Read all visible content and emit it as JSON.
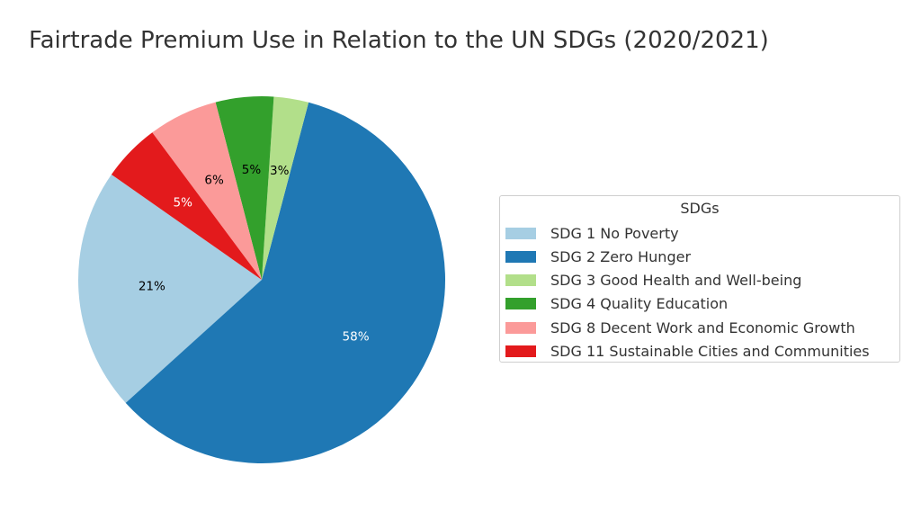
{
  "chart_data": {
    "type": "pie",
    "title": "Fairtrade Premium Use in Relation to the UN SDGs (2020/2021)",
    "legend_title": "SDGs",
    "legend_placement": "right",
    "slices": [
      {
        "label": "SDG 1 No Poverty",
        "value": 21,
        "pct_label": "21%",
        "color": "#a6cee3",
        "label_color": "#000000"
      },
      {
        "label": "SDG 2 Zero Hunger",
        "value": 58,
        "pct_label": "58%",
        "color": "#1f78b4",
        "label_color": "#ffffff"
      },
      {
        "label": "SDG 3 Good Health and Well-being",
        "value": 3,
        "pct_label": "3%",
        "color": "#b2df8a",
        "label_color": "#000000"
      },
      {
        "label": "SDG 4 Quality Education",
        "value": 5,
        "pct_label": "5%",
        "color": "#33a02c",
        "label_color": "#000000"
      },
      {
        "label": "SDG 8 Decent Work and Economic Growth",
        "value": 6,
        "pct_label": "6%",
        "color": "#fb9a99",
        "label_color": "#000000"
      },
      {
        "label": "SDG 11 Sustainable Cities and Communities",
        "value": 5,
        "pct_label": "5%",
        "color": "#e31a1c",
        "label_color": "#ffffff"
      }
    ]
  }
}
